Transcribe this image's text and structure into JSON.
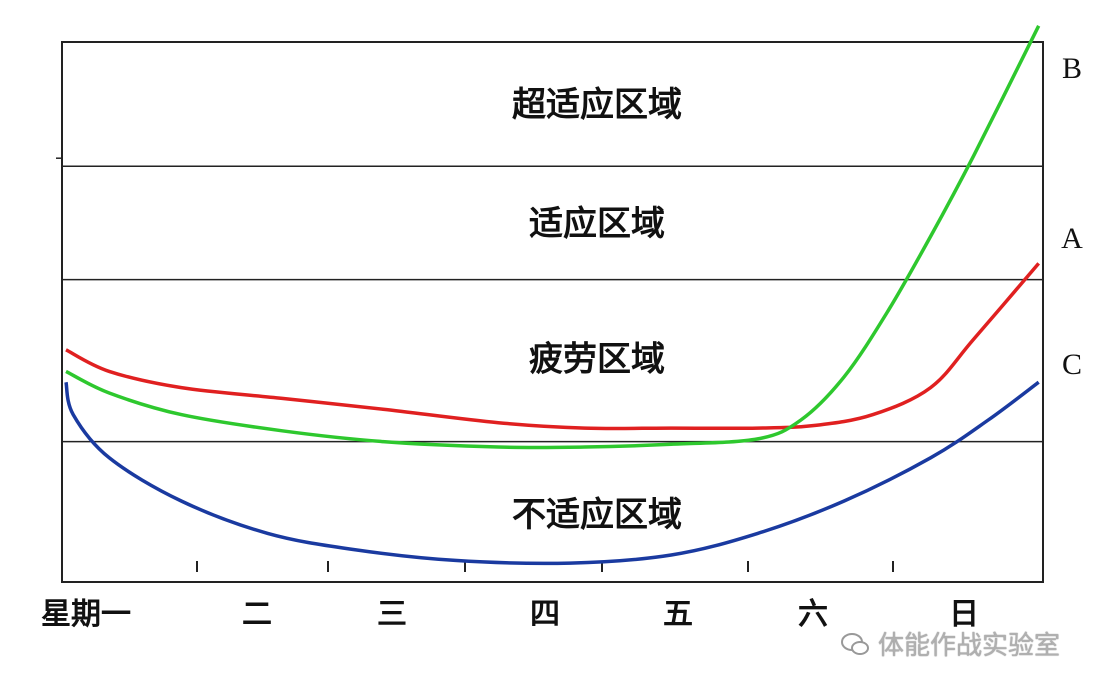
{
  "chart_data": {
    "type": "line",
    "categories": [
      "星期一",
      "二",
      "三",
      "四",
      "五",
      "六",
      "日"
    ],
    "zones": [
      "超适应区域",
      "适应区域",
      "疲劳区域",
      "不适应区域"
    ],
    "ylim": [
      0,
      10
    ],
    "zone_bounds": [
      7.7,
      5.6,
      2.6
    ],
    "series": [
      {
        "name": "A",
        "color": "#e02020",
        "x": [
          0,
          0.3,
          0.8,
          1.5,
          2.2,
          3,
          3.6,
          4.2,
          4.8,
          5.2,
          5.6,
          6,
          6.3,
          6.75
        ],
        "y": [
          4.3,
          3.9,
          3.6,
          3.4,
          3.2,
          2.95,
          2.85,
          2.85,
          2.85,
          2.9,
          3.1,
          3.6,
          4.5,
          5.9
        ]
      },
      {
        "name": "B",
        "color": "#2ec82e",
        "x": [
          0,
          0.3,
          0.8,
          1.5,
          2.2,
          3,
          3.6,
          4.2,
          4.8,
          5.1,
          5.4,
          5.7,
          6,
          6.3,
          6.75
        ],
        "y": [
          3.9,
          3.5,
          3.1,
          2.8,
          2.6,
          2.5,
          2.5,
          2.55,
          2.65,
          3.0,
          3.8,
          5.0,
          6.4,
          7.9,
          10.3
        ]
      },
      {
        "name": "C",
        "color": "#1a3aa0",
        "x": [
          0,
          0.05,
          0.3,
          0.8,
          1.4,
          2.0,
          2.7,
          3.5,
          4.2,
          4.8,
          5.4,
          6.0,
          6.4,
          6.75
        ],
        "y": [
          3.7,
          3.1,
          2.3,
          1.5,
          0.9,
          0.6,
          0.4,
          0.35,
          0.5,
          0.9,
          1.5,
          2.3,
          3.0,
          3.7
        ]
      }
    ]
  },
  "watermark": {
    "text": "体能作战实验室",
    "icon": "wechat-bubble-icon"
  }
}
